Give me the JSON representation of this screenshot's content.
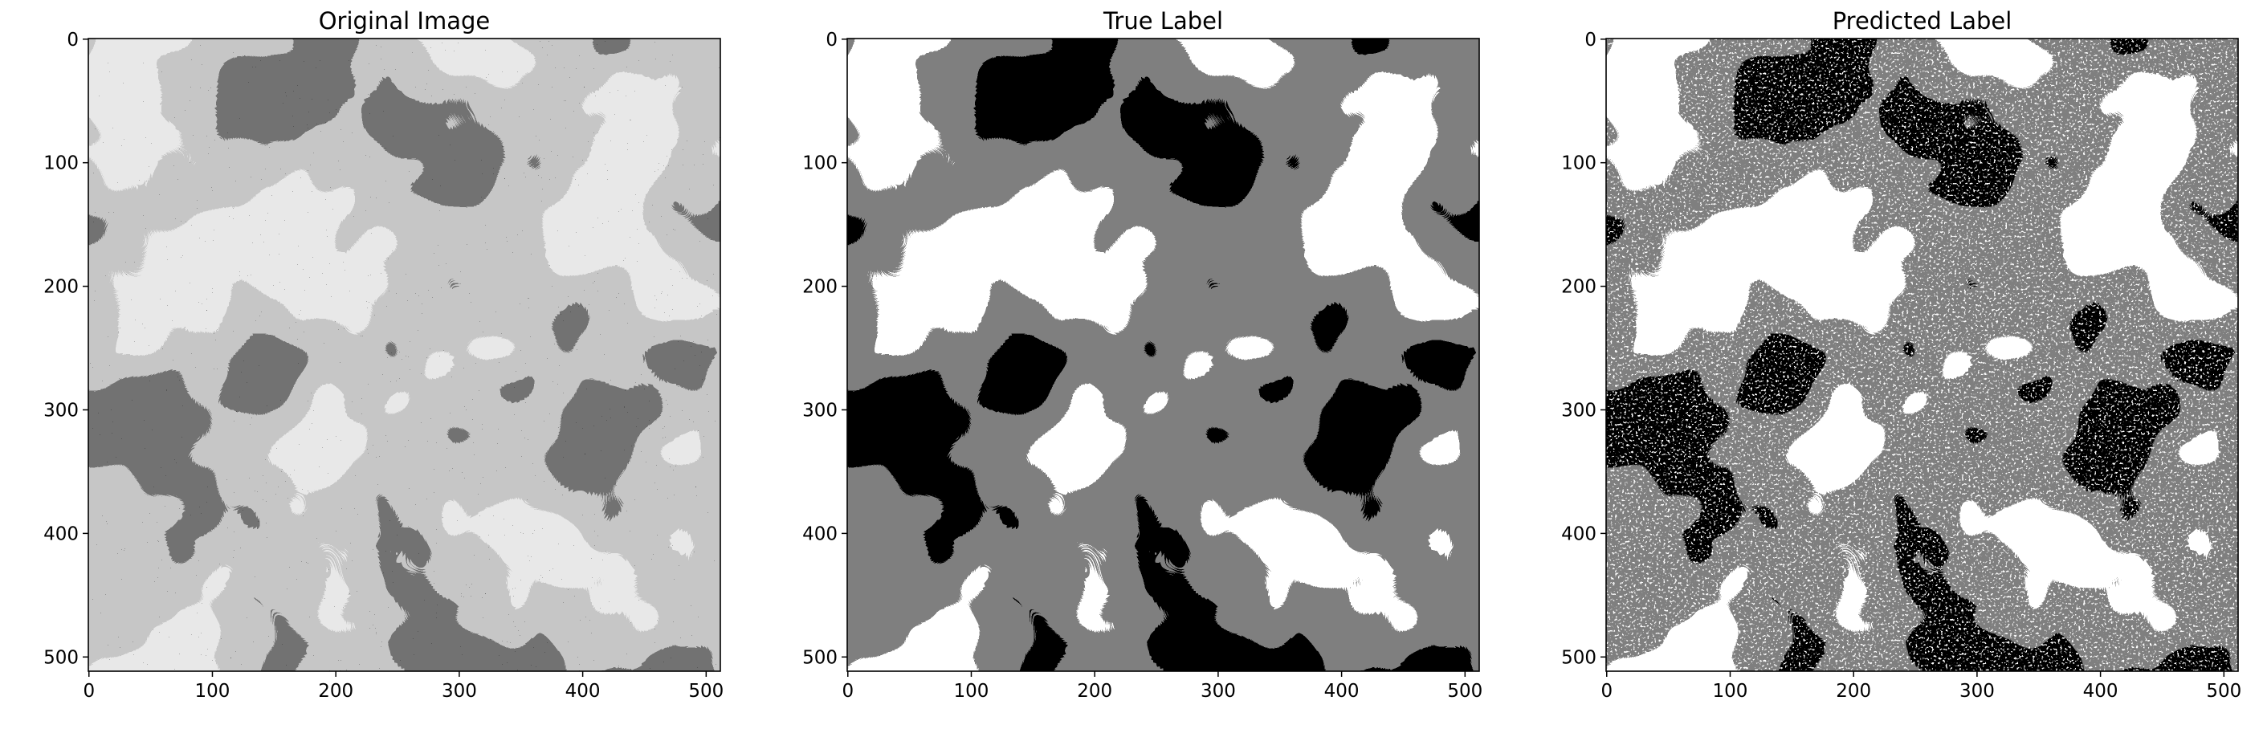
{
  "chart_data": [
    {
      "type": "image",
      "title": "Original Image",
      "xlim": [
        -0.5,
        511.5
      ],
      "ylim": [
        511.5,
        -0.5
      ],
      "xticks": [
        0,
        100,
        200,
        300,
        400,
        500
      ],
      "yticks": [
        0,
        100,
        200,
        300,
        400,
        500
      ]
    },
    {
      "type": "image",
      "title": "True Label",
      "xlim": [
        -0.5,
        511.5
      ],
      "ylim": [
        511.5,
        -0.5
      ],
      "xticks": [
        0,
        100,
        200,
        300,
        400,
        500
      ],
      "yticks": [
        0,
        100,
        200,
        300,
        400,
        500
      ]
    },
    {
      "type": "image",
      "title": "Predicted Label",
      "xlim": [
        -0.5,
        511.5
      ],
      "ylim": [
        511.5,
        -0.5
      ],
      "xticks": [
        0,
        100,
        200,
        300,
        400,
        500
      ],
      "yticks": [
        0,
        100,
        200,
        300,
        400,
        500
      ]
    }
  ]
}
